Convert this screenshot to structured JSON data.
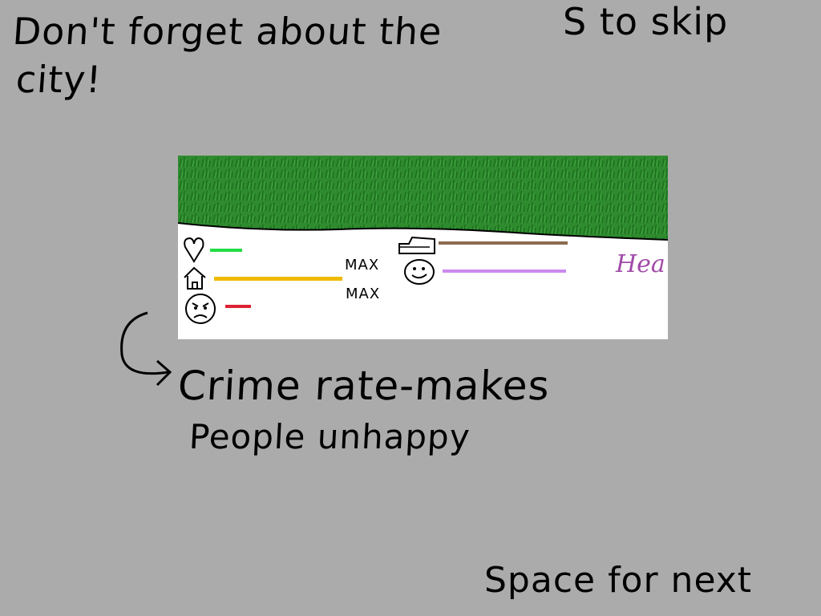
{
  "tutorial": {
    "tip_line1": "Don't forget about the",
    "tip_line2": "city!",
    "skip_hint": "S to skip",
    "next_hint": "Space for next",
    "crime_line1": "Crime rate-makes",
    "crime_line2": "People unhappy"
  },
  "hud": {
    "max_label_1": "MAX",
    "max_label_2": "MAX",
    "cutoff_text": "Hea",
    "stats": [
      {
        "icon": "heart-icon",
        "color": "#22dd44",
        "level": 0.25
      },
      {
        "icon": "house-icon",
        "color": "#eebb00",
        "level": 1.0
      },
      {
        "icon": "angry-face-icon",
        "color": "#dd2233",
        "level": 0.2
      },
      {
        "icon": "money-icon",
        "color": "#8b6b50",
        "level": 0.7
      },
      {
        "icon": "happy-face-icon",
        "color": "#cc88ee",
        "level": 0.7
      }
    ]
  },
  "colors": {
    "background": "#ababab",
    "grass": "#2e8b2e",
    "panel": "#ffffff",
    "cutoff_text": "#a04aa8"
  }
}
